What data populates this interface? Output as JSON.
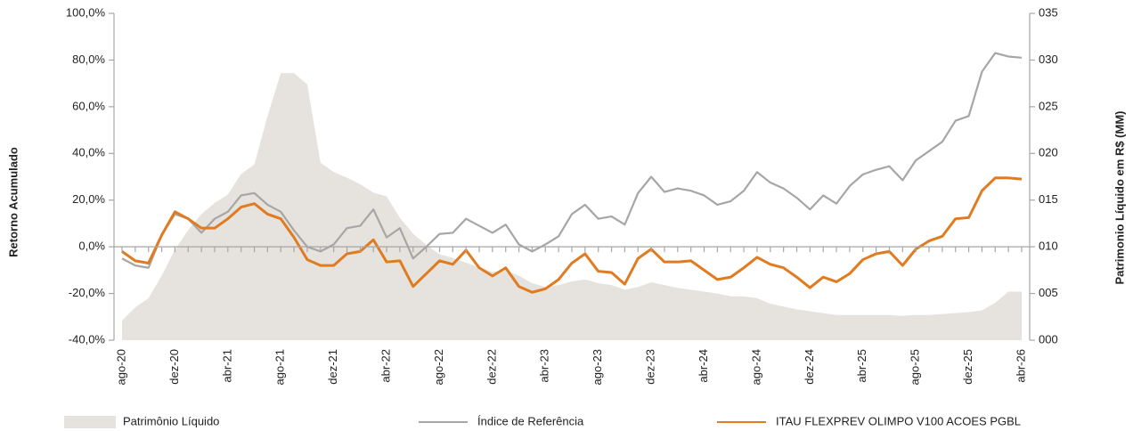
{
  "chart_data": {
    "type": "line",
    "y_label": "Retorno Acumulado",
    "y2_label": "Patrimonio Líquido em R$ (MM)",
    "categories": [
      "ago-20",
      null,
      null,
      null,
      "dez-20",
      null,
      null,
      null,
      "abr-21",
      null,
      null,
      null,
      "ago-21",
      null,
      null,
      null,
      "dez-21",
      null,
      null,
      null,
      "abr-22",
      null,
      null,
      null,
      "ago-22",
      null,
      null,
      null,
      "dez-22",
      null,
      null,
      null,
      "abr-23",
      null,
      null,
      null,
      "ago-23",
      null,
      null,
      null,
      "dez-23",
      null,
      null,
      null,
      "abr-24",
      null,
      null,
      null,
      "ago-24",
      null,
      null,
      null,
      "dez-24",
      null,
      null,
      null,
      "abr-25",
      null,
      null,
      null,
      "ago-25",
      null,
      null,
      null,
      "dez-25",
      null,
      null,
      null,
      "abr-26"
    ],
    "series": [
      {
        "name": "Patrimônio Líquido",
        "type": "area",
        "axis": "y2",
        "color": "#e6e2dd",
        "values": [
          2.1,
          3.5,
          4.5,
          6.9,
          9.7,
          11.8,
          13.5,
          14.7,
          15.6,
          17.8,
          18.8,
          24,
          28.6,
          28.6,
          27.4,
          19,
          18,
          17.4,
          16.7,
          15.8,
          15.4,
          13.1,
          11.4,
          10.2,
          9.2,
          8.8,
          8.3,
          7.8,
          7.3,
          7.5,
          6.9,
          6.1,
          5.7,
          5.9,
          6.3,
          6.5,
          6.1,
          5.9,
          5.4,
          5.7,
          6.2,
          5.9,
          5.6,
          5.4,
          5.2,
          5.0,
          4.7,
          4.7,
          4.5,
          3.9,
          3.6,
          3.3,
          3.1,
          2.9,
          2.7,
          2.7,
          2.7,
          2.7,
          2.7,
          2.6,
          2.7,
          2.7,
          2.8,
          2.9,
          3.0,
          3.2,
          4.0,
          5.2,
          5.2
        ]
      },
      {
        "name": "Índice de Referência",
        "type": "line",
        "color": "#a6a6a6",
        "values": [
          -5,
          -8,
          -9,
          5,
          14,
          12,
          6,
          12,
          15,
          22,
          23,
          18,
          15,
          7,
          0,
          -2,
          1,
          8,
          9,
          16,
          4,
          8,
          -5,
          0,
          5.5,
          6,
          12,
          9,
          6,
          9.5,
          1,
          -2,
          1,
          4.5,
          14,
          18,
          12,
          13,
          9.5,
          23,
          30,
          23.5,
          25,
          24,
          22,
          18,
          19.5,
          24,
          32,
          27.5,
          25,
          21,
          16,
          22,
          18.5,
          26,
          31,
          33,
          34.5,
          28.5,
          37,
          41,
          45,
          54,
          56,
          75,
          83,
          81.5,
          81
        ]
      },
      {
        "name": "ITAU FLEXPREV OLIMPO V100 ACOES PGBL",
        "type": "line",
        "color": "#e07b20",
        "values": [
          -2,
          -6,
          -7,
          5,
          15,
          12,
          8,
          8,
          12,
          17,
          18.5,
          14,
          12,
          4,
          -5.5,
          -8,
          -8,
          -3,
          -2,
          3,
          -6.5,
          -6,
          -17,
          -11.5,
          -6,
          -7.5,
          -1.5,
          -9,
          -12.5,
          -9,
          -17,
          -19.5,
          -18,
          -14,
          -7,
          -3,
          -10.5,
          -11,
          -16,
          -5,
          -1,
          -6.5,
          -6.5,
          -6,
          -10,
          -14,
          -13,
          -9,
          -4.5,
          -7.5,
          -9,
          -13,
          -17.5,
          -13,
          -15,
          -11.5,
          -5.5,
          -3,
          -2,
          -8,
          -1,
          2.5,
          4.5,
          12,
          12.5,
          24,
          29.5,
          29.5,
          29
        ]
      }
    ],
    "ylim": [
      -40,
      100
    ],
    "yticks": [
      {
        "value": -40,
        "label": "-40,0%"
      },
      {
        "value": -20,
        "label": "-20,0%"
      },
      {
        "value": 0,
        "label": "0,0%"
      },
      {
        "value": 20,
        "label": "20,0%"
      },
      {
        "value": 40,
        "label": "40,0%"
      },
      {
        "value": 60,
        "label": "60,0%"
      },
      {
        "value": 80,
        "label": "80,0%"
      },
      {
        "value": 100,
        "label": "100,0%"
      }
    ],
    "y2lim": [
      0,
      35
    ],
    "y2ticks": [
      {
        "value": 0,
        "label": "000"
      },
      {
        "value": 5,
        "label": "005"
      },
      {
        "value": 10,
        "label": "010"
      },
      {
        "value": 15,
        "label": "015"
      },
      {
        "value": 20,
        "label": "020"
      },
      {
        "value": 25,
        "label": "025"
      },
      {
        "value": 30,
        "label": "030"
      },
      {
        "value": 35,
        "label": "035"
      }
    ],
    "legend": "bottom"
  }
}
